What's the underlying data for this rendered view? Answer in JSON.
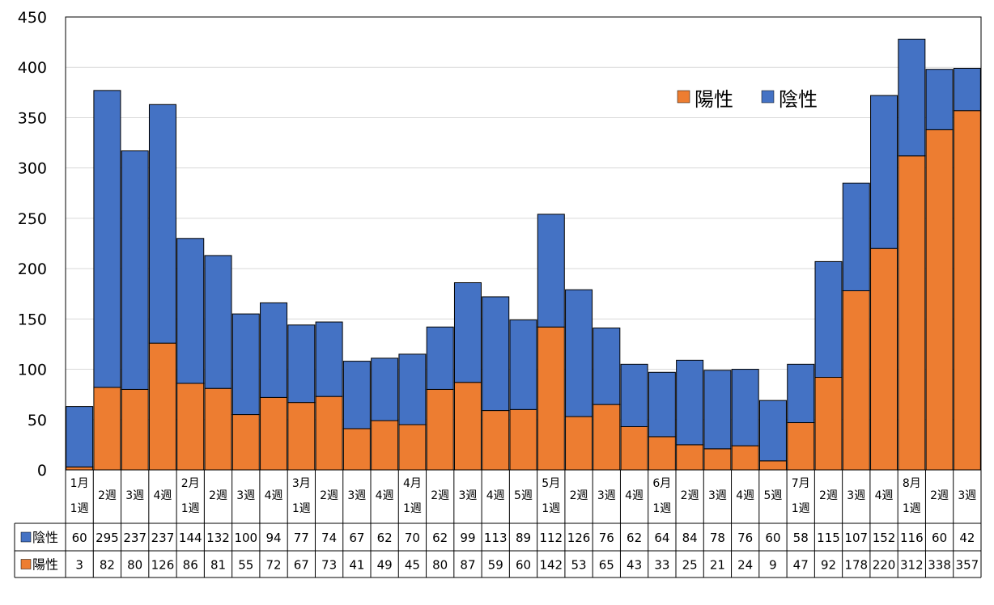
{
  "chart_data": {
    "type": "bar",
    "stacked": true,
    "ylim": [
      0,
      450
    ],
    "yticks": [
      0,
      50,
      100,
      150,
      200,
      250,
      300,
      350,
      400,
      450
    ],
    "grid": true,
    "legend_position": "top-right",
    "categories": [
      [
        "1月",
        "1週"
      ],
      [
        "2週"
      ],
      [
        "3週"
      ],
      [
        "4週"
      ],
      [
        "2月",
        "1週"
      ],
      [
        "2週"
      ],
      [
        "3週"
      ],
      [
        "4週"
      ],
      [
        "3月",
        "1週"
      ],
      [
        "2週"
      ],
      [
        "3週"
      ],
      [
        "4週"
      ],
      [
        "4月",
        "1週"
      ],
      [
        "2週"
      ],
      [
        "3週"
      ],
      [
        "4週"
      ],
      [
        "5週"
      ],
      [
        "5月",
        "1週"
      ],
      [
        "2週"
      ],
      [
        "3週"
      ],
      [
        "4週"
      ],
      [
        "6月",
        "1週"
      ],
      [
        "2週"
      ],
      [
        "3週"
      ],
      [
        "4週"
      ],
      [
        "5週"
      ],
      [
        "7月",
        "1週"
      ],
      [
        "2週"
      ],
      [
        "3週"
      ],
      [
        "4週"
      ],
      [
        "8月",
        "1週"
      ],
      [
        "2週"
      ],
      [
        "3週"
      ]
    ],
    "series": [
      {
        "name": "陽性",
        "color": "#ED7D31",
        "values": [
          3,
          82,
          80,
          126,
          86,
          81,
          55,
          72,
          67,
          73,
          41,
          49,
          45,
          80,
          87,
          59,
          60,
          142,
          53,
          65,
          43,
          33,
          25,
          21,
          24,
          9,
          47,
          92,
          178,
          220,
          312,
          338,
          357
        ]
      },
      {
        "name": "陰性",
        "color": "#4472C4",
        "values": [
          60,
          295,
          237,
          237,
          144,
          132,
          100,
          94,
          77,
          74,
          67,
          62,
          70,
          62,
          99,
          113,
          89,
          112,
          126,
          76,
          62,
          64,
          84,
          78,
          76,
          60,
          58,
          115,
          107,
          152,
          116,
          60,
          42
        ]
      }
    ]
  }
}
